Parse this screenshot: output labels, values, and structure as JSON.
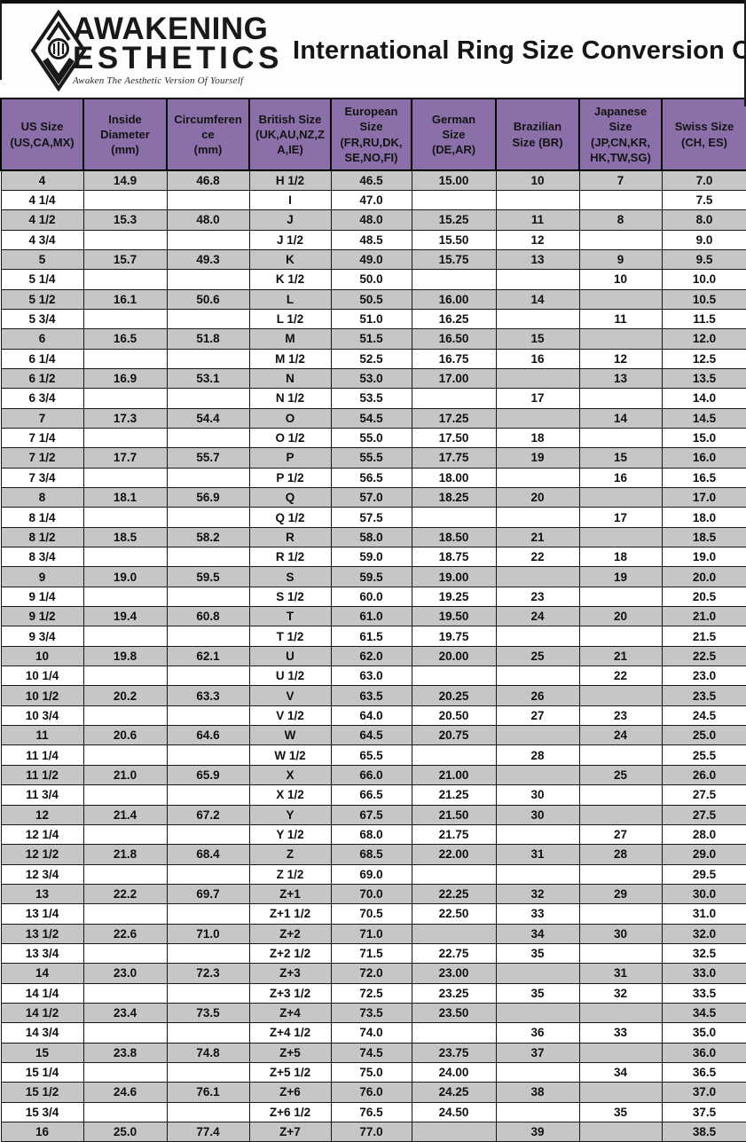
{
  "logo": {
    "line1": "AWAKENING",
    "line2": "ESTHETICS",
    "tagline": "Awaken The Aesthetic Version Of Yourself"
  },
  "title": "International Ring Size Conversion Chart",
  "colors": {
    "header_bg": "#8a6fa8",
    "row_alt_bg": "#c6c6c6",
    "row_bg": "#ffffff",
    "border": "#000000"
  },
  "table": {
    "headers": [
      "US Size\n(US,CA,MX)",
      "Inside\nDiameter\n(mm)",
      "Circumferen\nce\n(mm)",
      "British Size\n(UK,AU,NZ,Z\nA,IE)",
      "European\nSize\n(FR,RU,DK,\nSE,NO,FI)",
      "German\nSize\n(DE,AR)",
      "Brazilian\nSize (BR)",
      "Japanese\nSize\n(JP,CN,KR,\nHK,TW,SG)",
      "Swiss Size\n(CH, ES)"
    ],
    "rows": [
      [
        "4",
        "14.9",
        "46.8",
        "H 1/2",
        "46.5",
        "15.00",
        "10",
        "7",
        "7.0"
      ],
      [
        "4 1/4",
        "",
        "",
        "I",
        "47.0",
        "",
        "",
        "",
        "7.5"
      ],
      [
        "4 1/2",
        "15.3",
        "48.0",
        "J",
        "48.0",
        "15.25",
        "11",
        "8",
        "8.0"
      ],
      [
        "4 3/4",
        "",
        "",
        "J 1/2",
        "48.5",
        "15.50",
        "12",
        "",
        "9.0"
      ],
      [
        "5",
        "15.7",
        "49.3",
        "K",
        "49.0",
        "15.75",
        "13",
        "9",
        "9.5"
      ],
      [
        "5 1/4",
        "",
        "",
        "K 1/2",
        "50.0",
        "",
        "",
        "10",
        "10.0"
      ],
      [
        "5 1/2",
        "16.1",
        "50.6",
        "L",
        "50.5",
        "16.00",
        "14",
        "",
        "10.5"
      ],
      [
        "5 3/4",
        "",
        "",
        "L 1/2",
        "51.0",
        "16.25",
        "",
        "11",
        "11.5"
      ],
      [
        "6",
        "16.5",
        "51.8",
        "M",
        "51.5",
        "16.50",
        "15",
        "",
        "12.0"
      ],
      [
        "6 1/4",
        "",
        "",
        "M 1/2",
        "52.5",
        "16.75",
        "16",
        "12",
        "12.5"
      ],
      [
        "6 1/2",
        "16.9",
        "53.1",
        "N",
        "53.0",
        "17.00",
        "",
        "13",
        "13.5"
      ],
      [
        "6 3/4",
        "",
        "",
        "N 1/2",
        "53.5",
        "",
        "17",
        "",
        "14.0"
      ],
      [
        "7",
        "17.3",
        "54.4",
        "O",
        "54.5",
        "17.25",
        "",
        "14",
        "14.5"
      ],
      [
        "7 1/4",
        "",
        "",
        "O 1/2",
        "55.0",
        "17.50",
        "18",
        "",
        "15.0"
      ],
      [
        "7 1/2",
        "17.7",
        "55.7",
        "P",
        "55.5",
        "17.75",
        "19",
        "15",
        "16.0"
      ],
      [
        "7 3/4",
        "",
        "",
        "P 1/2",
        "56.5",
        "18.00",
        "",
        "16",
        "16.5"
      ],
      [
        "8",
        "18.1",
        "56.9",
        "Q",
        "57.0",
        "18.25",
        "20",
        "",
        "17.0"
      ],
      [
        "8 1/4",
        "",
        "",
        "Q 1/2",
        "57.5",
        "",
        "",
        "17",
        "18.0"
      ],
      [
        "8 1/2",
        "18.5",
        "58.2",
        "R",
        "58.0",
        "18.50",
        "21",
        "",
        "18.5"
      ],
      [
        "8 3/4",
        "",
        "",
        "R 1/2",
        "59.0",
        "18.75",
        "22",
        "18",
        "19.0"
      ],
      [
        "9",
        "19.0",
        "59.5",
        "S",
        "59.5",
        "19.00",
        "",
        "19",
        "20.0"
      ],
      [
        "9 1/4",
        "",
        "",
        "S 1/2",
        "60.0",
        "19.25",
        "23",
        "",
        "20.5"
      ],
      [
        "9 1/2",
        "19.4",
        "60.8",
        "T",
        "61.0",
        "19.50",
        "24",
        "20",
        "21.0"
      ],
      [
        "9 3/4",
        "",
        "",
        "T 1/2",
        "61.5",
        "19.75",
        "",
        "",
        "21.5"
      ],
      [
        "10",
        "19.8",
        "62.1",
        "U",
        "62.0",
        "20.00",
        "25",
        "21",
        "22.5"
      ],
      [
        "10 1/4",
        "",
        "",
        "U 1/2",
        "63.0",
        "",
        "",
        "22",
        "23.0"
      ],
      [
        "10 1/2",
        "20.2",
        "63.3",
        "V",
        "63.5",
        "20.25",
        "26",
        "",
        "23.5"
      ],
      [
        "10 3/4",
        "",
        "",
        "V 1/2",
        "64.0",
        "20.50",
        "27",
        "23",
        "24.5"
      ],
      [
        "11",
        "20.6",
        "64.6",
        "W",
        "64.5",
        "20.75",
        "",
        "24",
        "25.0"
      ],
      [
        "11 1/4",
        "",
        "",
        "W 1/2",
        "65.5",
        "",
        "28",
        "",
        "25.5"
      ],
      [
        "11 1/2",
        "21.0",
        "65.9",
        "X",
        "66.0",
        "21.00",
        "",
        "25",
        "26.0"
      ],
      [
        "11 3/4",
        "",
        "",
        "X 1/2",
        "66.5",
        "21.25",
        "30",
        "",
        "27.5"
      ],
      [
        "12",
        "21.4",
        "67.2",
        "Y",
        "67.5",
        "21.50",
        "30",
        "",
        "27.5"
      ],
      [
        "12 1/4",
        "",
        "",
        "Y 1/2",
        "68.0",
        "21.75",
        "",
        "27",
        "28.0"
      ],
      [
        "12 1/2",
        "21.8",
        "68.4",
        "Z",
        "68.5",
        "22.00",
        "31",
        "28",
        "29.0"
      ],
      [
        "12 3/4",
        "",
        "",
        "Z 1/2",
        "69.0",
        "",
        "",
        "",
        "29.5"
      ],
      [
        "13",
        "22.2",
        "69.7",
        "Z+1",
        "70.0",
        "22.25",
        "32",
        "29",
        "30.0"
      ],
      [
        "13 1/4",
        "",
        "",
        "Z+1 1/2",
        "70.5",
        "22.50",
        "33",
        "",
        "31.0"
      ],
      [
        "13 1/2",
        "22.6",
        "71.0",
        "Z+2",
        "71.0",
        "",
        "34",
        "30",
        "32.0"
      ],
      [
        "13 3/4",
        "",
        "",
        "Z+2 1/2",
        "71.5",
        "22.75",
        "35",
        "",
        "32.5"
      ],
      [
        "14",
        "23.0",
        "72.3",
        "Z+3",
        "72.0",
        "23.00",
        "",
        "31",
        "33.0"
      ],
      [
        "14 1/4",
        "",
        "",
        "Z+3 1/2",
        "72.5",
        "23.25",
        "35",
        "32",
        "33.5"
      ],
      [
        "14 1/2",
        "23.4",
        "73.5",
        "Z+4",
        "73.5",
        "23.50",
        "",
        "",
        "34.5"
      ],
      [
        "14 3/4",
        "",
        "",
        "Z+4 1/2",
        "74.0",
        "",
        "36",
        "33",
        "35.0"
      ],
      [
        "15",
        "23.8",
        "74.8",
        "Z+5",
        "74.5",
        "23.75",
        "37",
        "",
        "36.0"
      ],
      [
        "15 1/4",
        "",
        "",
        "Z+5 1/2",
        "75.0",
        "24.00",
        "",
        "34",
        "36.5"
      ],
      [
        "15 1/2",
        "24.6",
        "76.1",
        "Z+6",
        "76.0",
        "24.25",
        "38",
        "",
        "37.0"
      ],
      [
        "15 3/4",
        "",
        "",
        "Z+6 1/2",
        "76.5",
        "24.50",
        "",
        "35",
        "37.5"
      ],
      [
        "16",
        "25.0",
        "77.4",
        "Z+7",
        "77.0",
        "",
        "39",
        "",
        "38.5"
      ]
    ]
  }
}
